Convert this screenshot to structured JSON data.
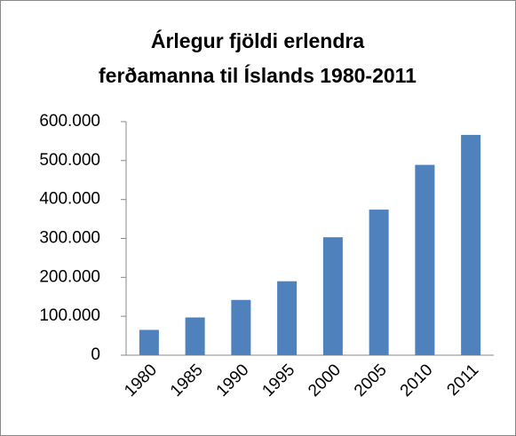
{
  "chart_data": {
    "type": "bar",
    "title": [
      "Árlegur fjöldi erlendra",
      "ferðamanna til Íslands 1980-2011"
    ],
    "categories": [
      "1980",
      "1985",
      "1990",
      "1995",
      "2000",
      "2005",
      "2010",
      "2011"
    ],
    "values": [
      65000,
      97000,
      142000,
      190000,
      303000,
      374000,
      489000,
      566000
    ],
    "color": "#4f81bd",
    "ylim": [
      0,
      600000
    ],
    "yticks": [
      0,
      {
        "value": 100000,
        "label": "100.000"
      },
      {
        "value": 200000,
        "label": "200.000"
      },
      {
        "value": 300000,
        "label": "300.000"
      },
      {
        "value": 400000,
        "label": "400.000"
      },
      {
        "value": 500000,
        "label": "500.000"
      },
      {
        "value": 600000,
        "label": "600.000"
      }
    ],
    "grid": false
  }
}
